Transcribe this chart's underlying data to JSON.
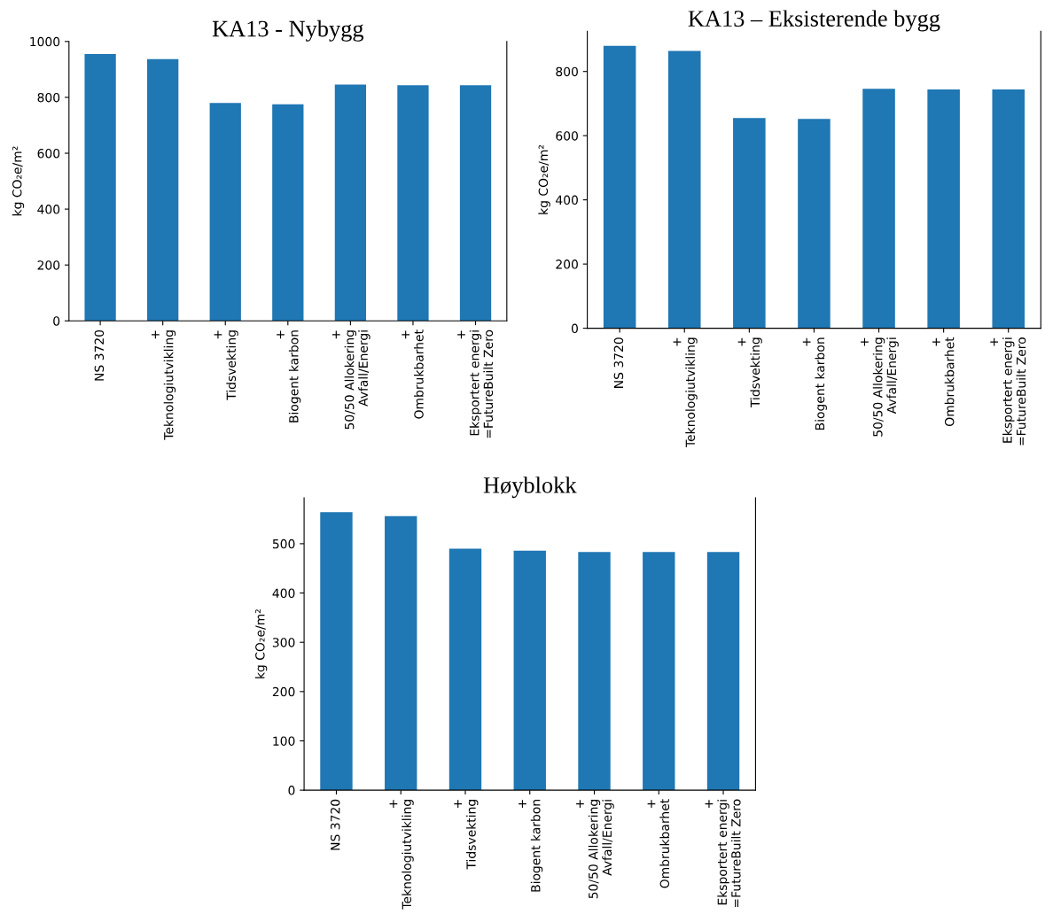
{
  "chart_data": [
    {
      "type": "bar",
      "title": "KA13 - Nybygg",
      "ylabel": "kg CO₂e/m²",
      "categories": [
        "NS 3720",
        "+\nTeknologiutvikling",
        "+\nTidsvekting",
        "+\nBiogent karbon",
        "+\n50/50 Allokering\nAvfall/Energi",
        "+\nOmbrukbarhet",
        "+\nEksportert energi\n=FutureBuilt Zero"
      ],
      "values": [
        955,
        937,
        780,
        775,
        846,
        843,
        843
      ],
      "color": "#1f77b4",
      "ylim": [
        0,
        1000
      ],
      "yticks": [
        0,
        200,
        400,
        600,
        800,
        1000
      ],
      "grid": false,
      "legend": false
    },
    {
      "type": "bar",
      "title": "KA13 – Eksisterende bygg",
      "ylabel": "kg CO₂e/m²",
      "categories": [
        "NS 3720",
        "+\nTeknologiutvikling",
        "+\nTidsvekting",
        "+\nBiogent karbon",
        "+\n50/50 Allokering\nAvfall/Energi",
        "+\nOmbrukbarhet",
        "+\nEksportert energi\n=FutureBuilt Zero"
      ],
      "values": [
        880,
        864,
        655,
        652,
        746,
        744,
        744
      ],
      "color": "#1f77b4",
      "ylim": [
        0,
        925
      ],
      "yticks": [
        0,
        200,
        400,
        600,
        800
      ],
      "grid": false,
      "legend": false
    },
    {
      "type": "bar",
      "title": "Høyblokk",
      "ylabel": "kg CO₂e/m²",
      "categories": [
        "NS 3720",
        "+\nTeknologiutvikling",
        "+\nTidsvekting",
        "+\nBiogent karbon",
        "+\n50/50 Allokering\nAvfall/Energi",
        "+\nOmbrukbarhet",
        "+\nEksportert energi\n=FutureBuilt Zero"
      ],
      "values": [
        564,
        556,
        490,
        486,
        483,
        483,
        483
      ],
      "color": "#1f77b4",
      "ylim": [
        0,
        593
      ],
      "yticks": [
        0,
        100,
        200,
        300,
        400,
        500
      ],
      "grid": false,
      "legend": false
    }
  ]
}
